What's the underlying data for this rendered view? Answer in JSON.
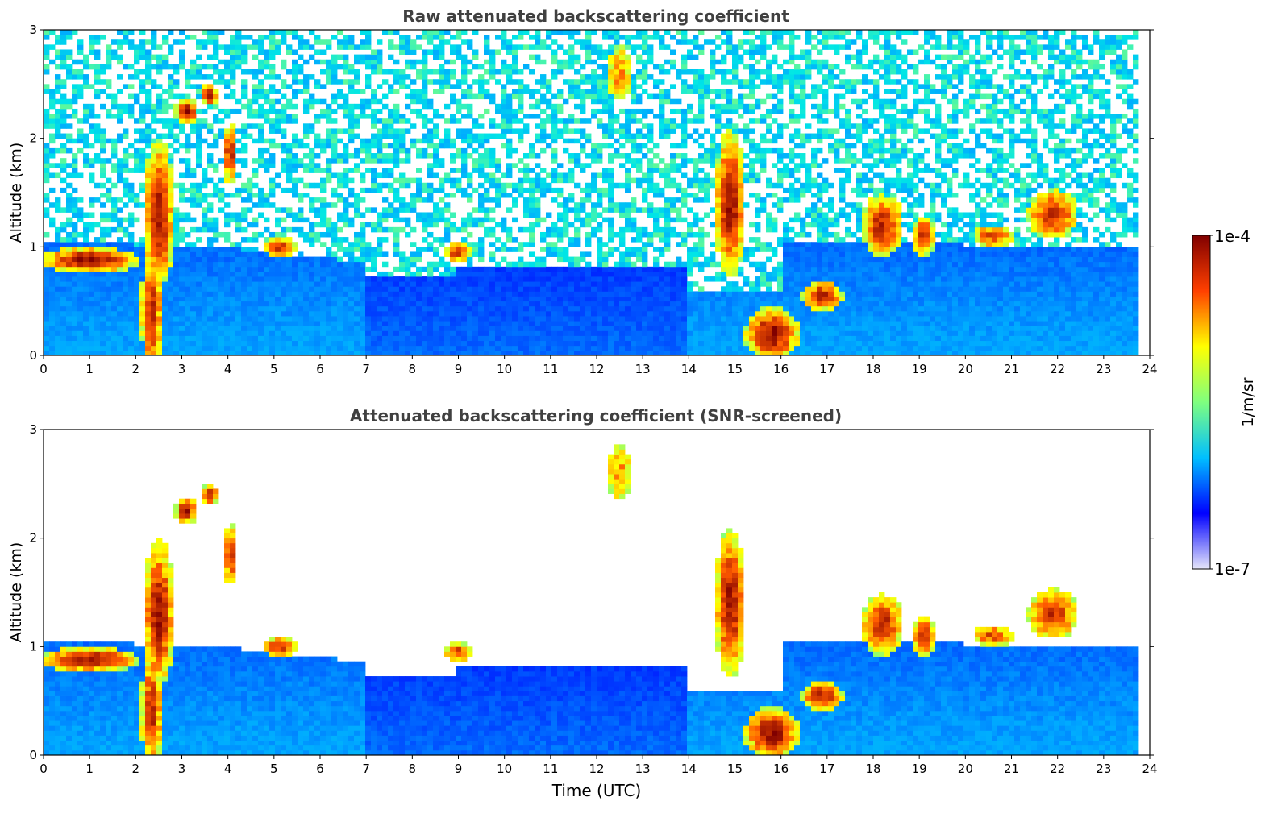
{
  "chart_data": [
    {
      "type": "heatmap",
      "title": "Raw attenuated backscattering coefficient",
      "xlabel": "",
      "ylabel": "Altitude (km)",
      "xlim": [
        0,
        24
      ],
      "ylim": [
        0,
        3
      ],
      "x_ticks": [
        0,
        1,
        2,
        3,
        4,
        5,
        6,
        7,
        8,
        9,
        10,
        11,
        12,
        13,
        14,
        15,
        16,
        17,
        18,
        19,
        20,
        21,
        22,
        23,
        24
      ],
      "y_ticks": [
        0,
        1,
        2,
        3
      ],
      "screened": false
    },
    {
      "type": "heatmap",
      "title": "Attenuated backscattering coefficient (SNR-screened)",
      "xlabel": "Time (UTC)",
      "ylabel": "Altitude (km)",
      "xlim": [
        0,
        24
      ],
      "ylim": [
        0,
        3
      ],
      "x_ticks": [
        0,
        1,
        2,
        3,
        4,
        5,
        6,
        7,
        8,
        9,
        10,
        11,
        12,
        13,
        14,
        15,
        16,
        17,
        18,
        19,
        20,
        21,
        22,
        23,
        24
      ],
      "y_ticks": [
        0,
        1,
        2,
        3
      ],
      "screened": true
    }
  ],
  "colorbar": {
    "label": "1/m/sr",
    "max_label": "1e-4",
    "min_label": "1e-7",
    "colormap": "jet",
    "colors": [
      "#e6e6fa",
      "#0000ff",
      "#00bfff",
      "#7fff7f",
      "#ffff00",
      "#ff4000",
      "#800000"
    ]
  }
}
